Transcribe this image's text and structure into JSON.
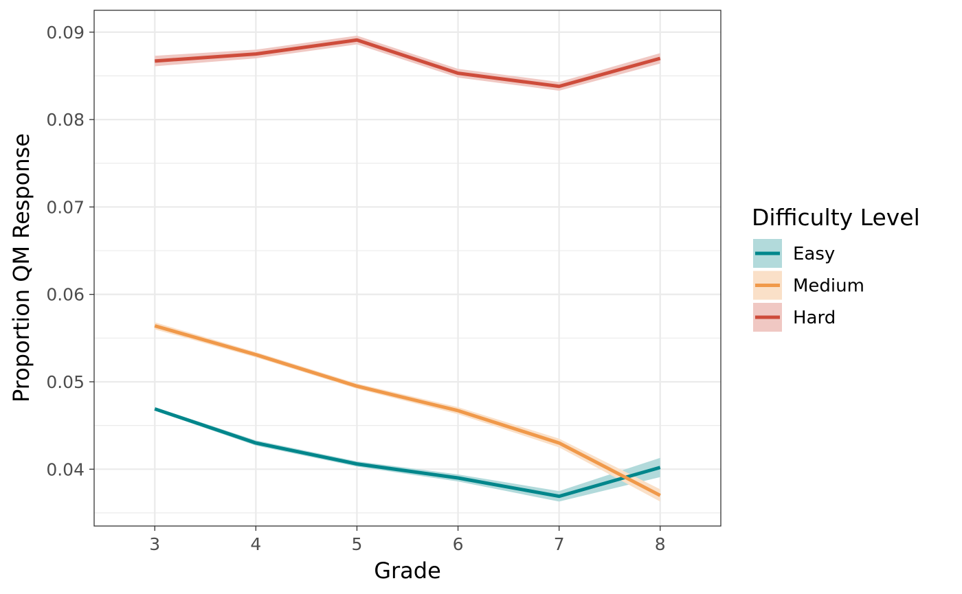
{
  "chart_data": {
    "type": "line",
    "xlabel": "Grade",
    "ylabel": "Proportion QM Response",
    "x": [
      3,
      4,
      5,
      6,
      7,
      8
    ],
    "x_ticks": [
      "3",
      "4",
      "5",
      "6",
      "7",
      "8"
    ],
    "y_ticks": [
      "0.04",
      "0.05",
      "0.06",
      "0.07",
      "0.08",
      "0.09"
    ],
    "xlim": [
      2.4,
      8.6
    ],
    "ylim": [
      0.0335,
      0.0925
    ],
    "grid": true,
    "legend": {
      "title": "Difficulty Level",
      "position": "right"
    },
    "series": [
      {
        "name": "Easy",
        "color": "#00868B",
        "band_color": "#B2DADB",
        "values": [
          0.0469,
          0.043,
          0.0406,
          0.039,
          0.0369,
          0.0402
        ],
        "lower": [
          0.0467,
          0.0427,
          0.0403,
          0.0386,
          0.0363,
          0.0391
        ],
        "upper": [
          0.0471,
          0.0433,
          0.0409,
          0.0394,
          0.0375,
          0.0413
        ]
      },
      {
        "name": "Medium",
        "color": "#F0994A",
        "band_color": "#FAE0C8",
        "values": [
          0.0564,
          0.0531,
          0.0495,
          0.0467,
          0.043,
          0.037
        ],
        "lower": [
          0.056,
          0.0528,
          0.0492,
          0.0463,
          0.0425,
          0.0363
        ],
        "upper": [
          0.0568,
          0.0534,
          0.0498,
          0.0471,
          0.0435,
          0.0377
        ]
      },
      {
        "name": "Hard",
        "color": "#CE4C3B",
        "band_color": "#F0C8C3",
        "values": [
          0.0867,
          0.0875,
          0.0891,
          0.0853,
          0.0838,
          0.087
        ],
        "lower": [
          0.0861,
          0.087,
          0.0886,
          0.0848,
          0.0833,
          0.0864
        ],
        "upper": [
          0.0873,
          0.088,
          0.0896,
          0.0858,
          0.0843,
          0.0876
        ]
      }
    ]
  }
}
